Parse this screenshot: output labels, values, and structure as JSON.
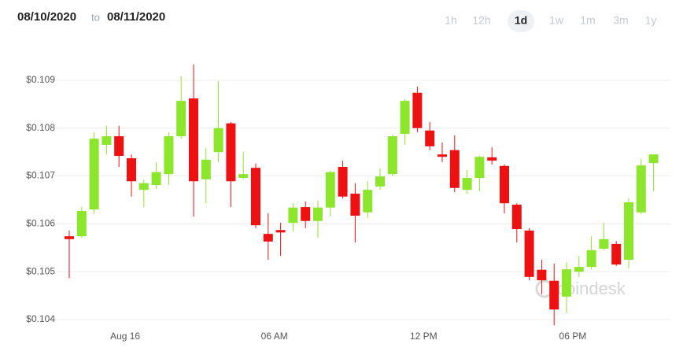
{
  "header": {
    "from": "08/10/2020",
    "sep": "to",
    "to": "08/11/2020",
    "ranges": [
      "1h",
      "12h",
      "1d",
      "1w",
      "1m",
      "3m",
      "1y"
    ],
    "active_range": "1d"
  },
  "chart_data": {
    "type": "candlestick",
    "watermark": "coindesk",
    "categories": [
      null,
      null,
      null,
      null,
      null,
      "Aug 16",
      null,
      null,
      null,
      null,
      null,
      null,
      null,
      null,
      null,
      null,
      null,
      "06 AM",
      null,
      null,
      null,
      null,
      null,
      null,
      null,
      null,
      null,
      null,
      null,
      "12 PM",
      null,
      null,
      null,
      null,
      null,
      null,
      null,
      null,
      null,
      null,
      null,
      "06 PM",
      null,
      null,
      null,
      null,
      null,
      null
    ],
    "open": [
      0.10574,
      0.10574,
      0.1063,
      0.10765,
      0.10783,
      0.10737,
      0.10671,
      0.10681,
      0.10704,
      0.10783,
      0.10862,
      0.10693,
      0.1075,
      0.1081,
      0.10696,
      0.10717,
      0.10579,
      0.10587,
      0.10602,
      0.10635,
      0.10606,
      0.10634,
      0.10719,
      0.10663,
      0.10624,
      0.10678,
      0.10704,
      0.10788,
      0.10874,
      0.10795,
      0.10745,
      0.10754,
      0.10671,
      0.10696,
      0.10739,
      0.10721,
      0.1064,
      0.10586,
      0.10504,
      0.10481,
      0.10448,
      0.105,
      0.1051,
      0.10548,
      0.10558,
      0.10525,
      0.10624,
      0.10727
    ],
    "high": [
      0.10586,
      0.10635,
      0.10791,
      0.10805,
      0.10805,
      0.10745,
      0.10693,
      0.10729,
      0.10791,
      0.10908,
      0.10933,
      0.10759,
      0.10898,
      0.10813,
      0.1075,
      0.10726,
      0.10622,
      0.10602,
      0.10643,
      0.10647,
      0.10648,
      0.10711,
      0.10732,
      0.10685,
      0.10689,
      0.10716,
      0.10786,
      0.10861,
      0.10887,
      0.10813,
      0.1077,
      0.10785,
      0.10712,
      0.10742,
      0.1076,
      0.10724,
      0.10643,
      0.10591,
      0.10525,
      0.10517,
      0.1052,
      0.10533,
      0.10574,
      0.10602,
      0.10564,
      0.10653,
      0.10736,
      0.10745
    ],
    "low": [
      0.10486,
      0.10571,
      0.1062,
      0.10745,
      0.10719,
      0.10657,
      0.10635,
      0.10673,
      0.10681,
      0.10778,
      0.10615,
      0.10643,
      0.10729,
      0.10635,
      0.10693,
      0.10591,
      0.10525,
      0.10533,
      0.10584,
      0.10591,
      0.10571,
      0.10615,
      0.10653,
      0.10561,
      0.10612,
      0.10671,
      0.10699,
      0.10765,
      0.10791,
      0.10754,
      0.10729,
      0.10666,
      0.10663,
      0.10668,
      0.10724,
      0.10622,
      0.10561,
      0.10482,
      0.10453,
      0.10388,
      0.10413,
      0.10489,
      0.10505,
      0.10545,
      0.10512,
      0.10507,
      0.1062,
      0.10668
    ],
    "close": [
      0.10568,
      0.10627,
      0.10778,
      0.10783,
      0.10742,
      0.10689,
      0.10685,
      0.10708,
      0.10783,
      0.10857,
      0.10689,
      0.10734,
      0.108,
      0.10689,
      0.10704,
      0.10597,
      0.10563,
      0.10582,
      0.10634,
      0.10606,
      0.10634,
      0.10708,
      0.10657,
      0.10617,
      0.10671,
      0.10699,
      0.10783,
      0.10857,
      0.108,
      0.10762,
      0.1074,
      0.10675,
      0.10696,
      0.1074,
      0.10732,
      0.10643,
      0.10589,
      0.10489,
      0.10482,
      0.10421,
      0.10505,
      0.1051,
      0.10545,
      0.10568,
      0.10515,
      0.10645,
      0.10722,
      0.10745
    ],
    "up_color": "#8ce62c",
    "down_color": "#ee1111",
    "ylim": [
      0.10395,
      0.1097
    ],
    "yticks": [
      {
        "value": 0.104,
        "label": "$0.104"
      },
      {
        "value": 0.105,
        "label": "$0.105"
      },
      {
        "value": 0.106,
        "label": "$0.106"
      },
      {
        "value": 0.107,
        "label": "$0.107"
      },
      {
        "value": 0.108,
        "label": "$0.108"
      },
      {
        "value": 0.109,
        "label": "$0.109"
      }
    ],
    "grid": true
  }
}
